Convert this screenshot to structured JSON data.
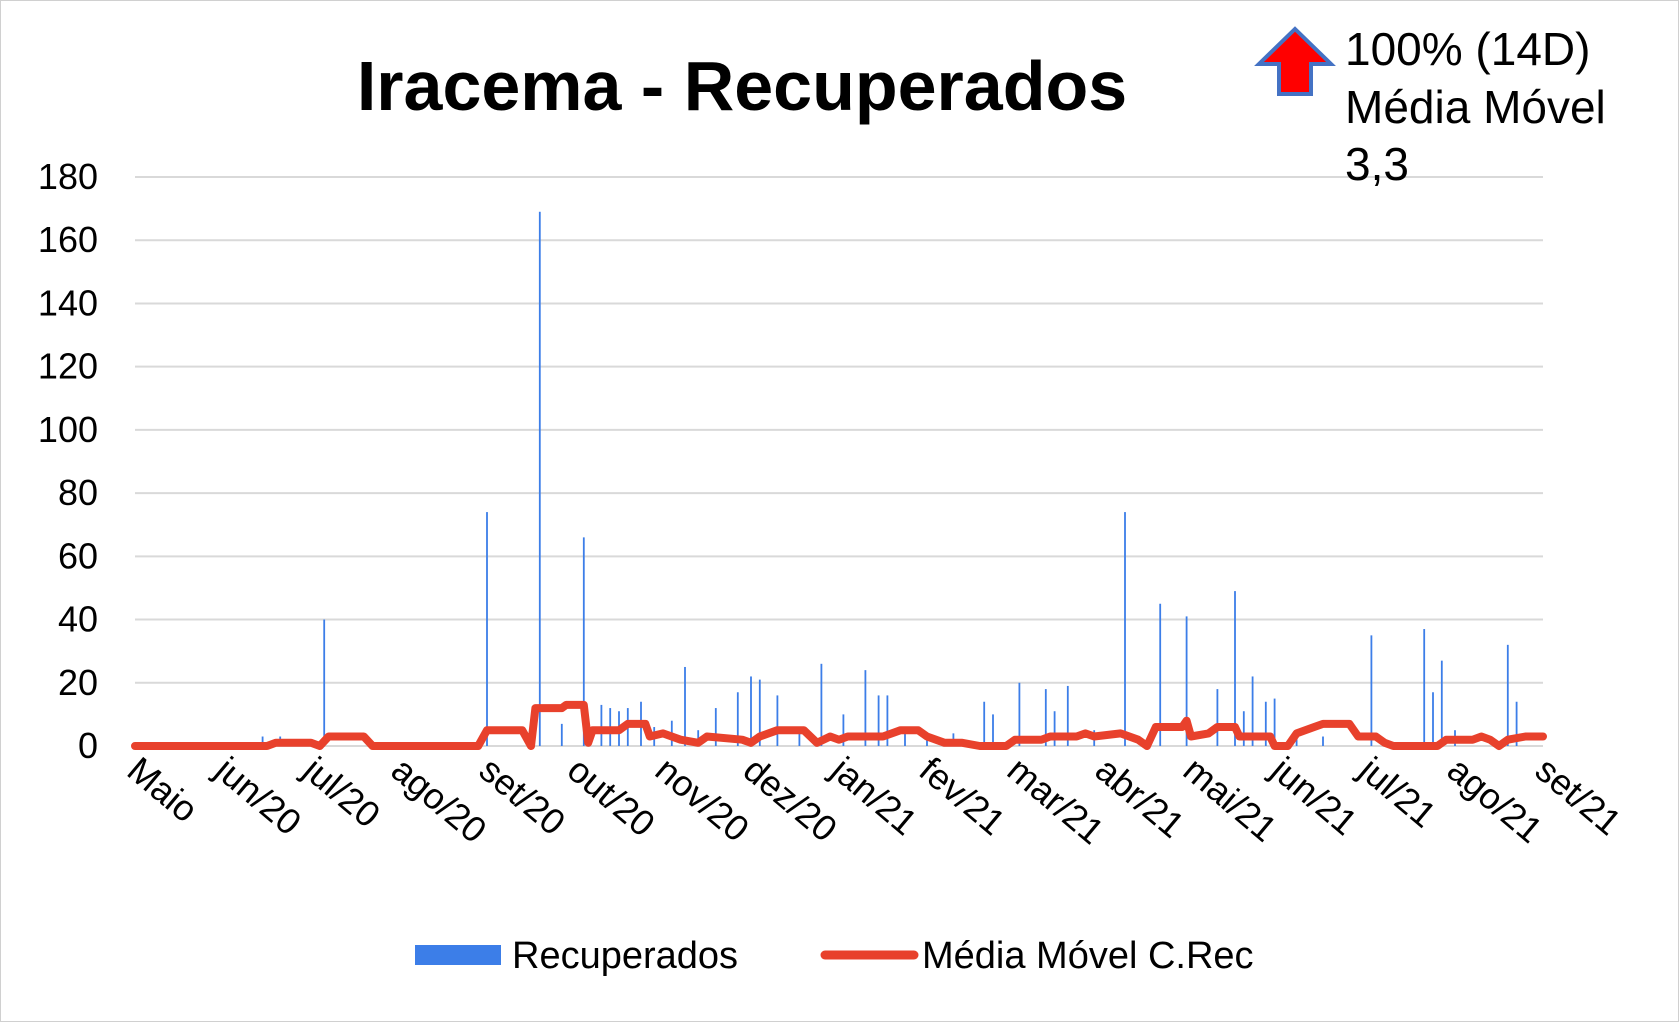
{
  "chart_data": {
    "type": "bar",
    "title": "Iracema - Recuperados",
    "xlabel": "",
    "ylabel": "",
    "ylim": [
      0,
      180
    ],
    "yticks": [
      0,
      20,
      40,
      60,
      80,
      100,
      120,
      140,
      160,
      180
    ],
    "grid": true,
    "legend_position": "bottom",
    "x_tick_labels": [
      "Maio",
      "jun/20",
      "jul/20",
      "ago/20",
      "set/20",
      "out/20",
      "nov/20",
      "dez/20",
      "jan/21",
      "fev/21",
      "mar/21",
      "abr/21",
      "mai/21",
      "jun/21",
      "jul/21",
      "ago/21",
      "set/21"
    ],
    "x_range": [
      0,
      16
    ],
    "series": [
      {
        "name": "Recuperados",
        "kind": "bar",
        "color": "#3c7ee8",
        "points": [
          [
            1.45,
            3
          ],
          [
            1.65,
            3
          ],
          [
            2.15,
            40
          ],
          [
            4.0,
            74
          ],
          [
            4.6,
            169
          ],
          [
            4.85,
            7
          ],
          [
            5.1,
            66
          ],
          [
            5.3,
            13
          ],
          [
            5.4,
            12
          ],
          [
            5.5,
            11
          ],
          [
            5.6,
            12
          ],
          [
            5.75,
            14
          ],
          [
            5.9,
            6
          ],
          [
            6.1,
            8
          ],
          [
            6.25,
            25
          ],
          [
            6.4,
            5
          ],
          [
            6.6,
            12
          ],
          [
            6.85,
            17
          ],
          [
            7.0,
            22
          ],
          [
            7.1,
            21
          ],
          [
            7.3,
            16
          ],
          [
            7.55,
            5
          ],
          [
            7.8,
            26
          ],
          [
            8.05,
            10
          ],
          [
            8.3,
            24
          ],
          [
            8.45,
            16
          ],
          [
            8.55,
            16
          ],
          [
            8.75,
            5
          ],
          [
            9.0,
            3
          ],
          [
            9.3,
            4
          ],
          [
            9.65,
            14
          ],
          [
            9.75,
            10
          ],
          [
            10.05,
            20
          ],
          [
            10.35,
            18
          ],
          [
            10.45,
            11
          ],
          [
            10.6,
            19
          ],
          [
            10.9,
            5
          ],
          [
            11.25,
            74
          ],
          [
            11.65,
            45
          ],
          [
            11.95,
            41
          ],
          [
            12.3,
            18
          ],
          [
            12.5,
            49
          ],
          [
            12.6,
            11
          ],
          [
            12.7,
            22
          ],
          [
            12.85,
            14
          ],
          [
            12.95,
            15
          ],
          [
            13.2,
            4
          ],
          [
            13.5,
            3
          ],
          [
            14.05,
            35
          ],
          [
            14.65,
            37
          ],
          [
            14.75,
            17
          ],
          [
            14.85,
            27
          ],
          [
            15.0,
            5
          ],
          [
            15.6,
            32
          ],
          [
            15.7,
            14
          ]
        ]
      },
      {
        "name": "Média Móvel C.Rec",
        "kind": "line",
        "color": "#e8412c",
        "points": [
          [
            0,
            0
          ],
          [
            1.5,
            0
          ],
          [
            1.6,
            1
          ],
          [
            2.0,
            1
          ],
          [
            2.1,
            0
          ],
          [
            2.2,
            3
          ],
          [
            2.6,
            3
          ],
          [
            2.7,
            0
          ],
          [
            3.9,
            0
          ],
          [
            4.0,
            5
          ],
          [
            4.4,
            5
          ],
          [
            4.5,
            0
          ],
          [
            4.55,
            12
          ],
          [
            4.85,
            12
          ],
          [
            4.9,
            13
          ],
          [
            5.1,
            13
          ],
          [
            5.15,
            1
          ],
          [
            5.2,
            5
          ],
          [
            5.5,
            5
          ],
          [
            5.6,
            7
          ],
          [
            5.8,
            7
          ],
          [
            5.85,
            3
          ],
          [
            6.0,
            4
          ],
          [
            6.2,
            2
          ],
          [
            6.4,
            1
          ],
          [
            6.5,
            3
          ],
          [
            6.9,
            2
          ],
          [
            7.0,
            1
          ],
          [
            7.1,
            3
          ],
          [
            7.3,
            5
          ],
          [
            7.6,
            5
          ],
          [
            7.75,
            1
          ],
          [
            7.9,
            3
          ],
          [
            8.0,
            2
          ],
          [
            8.1,
            3
          ],
          [
            8.5,
            3
          ],
          [
            8.7,
            5
          ],
          [
            8.9,
            5
          ],
          [
            9.0,
            3
          ],
          [
            9.2,
            1
          ],
          [
            9.4,
            1
          ],
          [
            9.6,
            0
          ],
          [
            9.9,
            0
          ],
          [
            10.0,
            2
          ],
          [
            10.3,
            2
          ],
          [
            10.4,
            3
          ],
          [
            10.7,
            3
          ],
          [
            10.8,
            4
          ],
          [
            10.9,
            3
          ],
          [
            11.2,
            4
          ],
          [
            11.4,
            2
          ],
          [
            11.5,
            0
          ],
          [
            11.6,
            6
          ],
          [
            11.9,
            6
          ],
          [
            11.95,
            8
          ],
          [
            12.0,
            3
          ],
          [
            12.2,
            4
          ],
          [
            12.3,
            6
          ],
          [
            12.5,
            6
          ],
          [
            12.55,
            3
          ],
          [
            12.9,
            3
          ],
          [
            12.95,
            0
          ],
          [
            13.1,
            0
          ],
          [
            13.2,
            4
          ],
          [
            13.4,
            6
          ],
          [
            13.5,
            7
          ],
          [
            13.8,
            7
          ],
          [
            13.9,
            3
          ],
          [
            14.1,
            3
          ],
          [
            14.2,
            1
          ],
          [
            14.3,
            0
          ],
          [
            14.8,
            0
          ],
          [
            14.9,
            2
          ],
          [
            15.2,
            2
          ],
          [
            15.3,
            3
          ],
          [
            15.4,
            2
          ],
          [
            15.5,
            0
          ],
          [
            15.6,
            2
          ],
          [
            15.8,
            3
          ],
          [
            16.0,
            3
          ]
        ]
      }
    ],
    "annotation": {
      "icon": "up-arrow-icon",
      "arrow_fill": "#ff0000",
      "arrow_outline": "#4472c4",
      "lines": [
        "100% (14D)",
        "Média Móvel",
        "3,3"
      ]
    }
  }
}
